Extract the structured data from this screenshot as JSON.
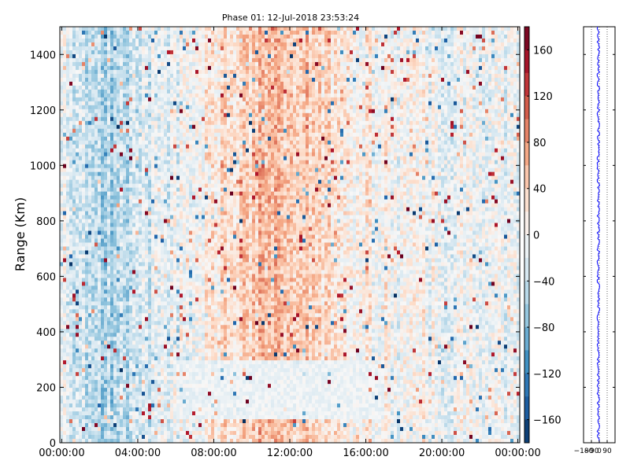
{
  "chart_data": [
    {
      "type": "heatmap",
      "title": "Phase 01: 12-Jul-2018 23:53:24",
      "xlabel": "",
      "ylabel": "Range (Km)",
      "x_tick_labels": [
        "00:00:00",
        "04:00:00",
        "08:00:00",
        "12:00:00",
        "16:00:00",
        "20:00:00",
        "00:00:00"
      ],
      "x_tick_hours": [
        0,
        4,
        8,
        12,
        16,
        20,
        24
      ],
      "xlim_hours": [
        -0.1,
        24.1
      ],
      "y_ticks": [
        0,
        200,
        400,
        600,
        800,
        1000,
        1200,
        1400
      ],
      "ylim": [
        0,
        1500
      ],
      "colorbar": {
        "ticks": [
          160,
          120,
          80,
          40,
          0,
          -40,
          -80,
          -120,
          -160
        ],
        "tick_labels": [
          "160",
          "120",
          "80",
          "40",
          "0",
          "−40",
          "−80",
          "−120",
          "−160"
        ],
        "range": [
          -180,
          180
        ],
        "colormap": "RdBu_r"
      },
      "value_range": [
        -180,
        180
      ],
      "trend": {
        "hours": [
          0,
          1,
          2,
          3,
          4,
          5,
          6,
          7,
          8,
          9,
          10,
          11,
          12,
          13,
          14,
          15,
          16,
          17,
          18,
          19,
          20,
          21,
          22,
          23,
          24
        ],
        "mean_phase": [
          -20,
          -30,
          -55,
          -50,
          -35,
          -25,
          -15,
          5,
          25,
          35,
          45,
          60,
          55,
          50,
          35,
          20,
          10,
          5,
          0,
          0,
          -5,
          -5,
          -10,
          -15,
          -20
        ]
      },
      "features": [
        {
          "type": "low-variance band",
          "range_km": [
            80,
            300
          ],
          "hours": [
            6,
            17
          ]
        }
      ]
    },
    {
      "type": "line",
      "x_tick_labels": [
        "−180",
        "−90",
        "0",
        "90"
      ],
      "x_ticks": [
        -180,
        -90,
        0,
        90
      ],
      "xlim": [
        -180,
        180
      ],
      "ylim": [
        0,
        1500
      ],
      "y_ticks": [
        0,
        200,
        400,
        600,
        800,
        1000,
        1200,
        1400
      ],
      "vertical_dotted_gridlines": [
        -180,
        -90,
        0,
        90,
        180
      ],
      "series_color": "#0000ff",
      "profile_mean": -10,
      "profile_spread": 15
    }
  ]
}
